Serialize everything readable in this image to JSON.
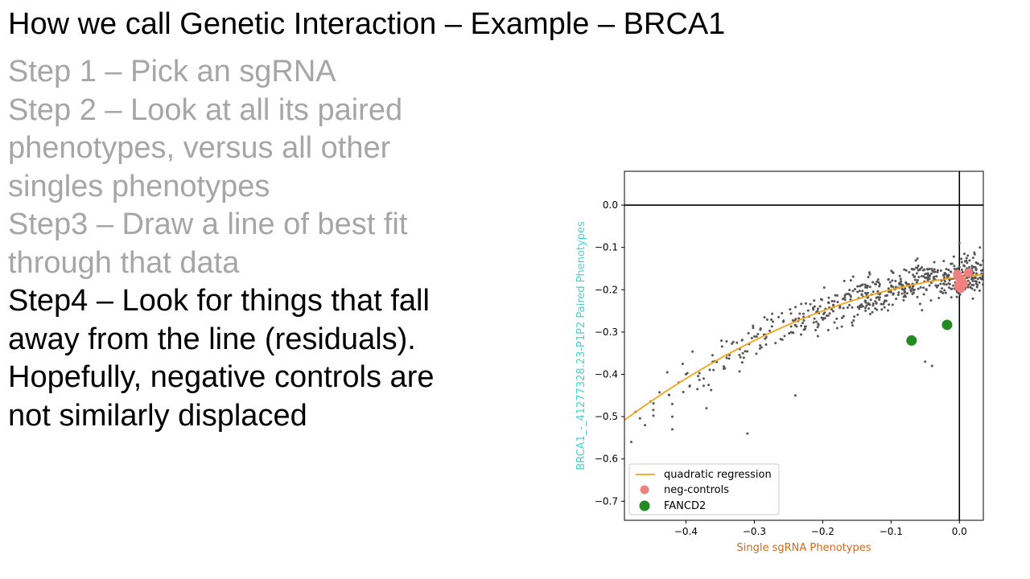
{
  "slide": {
    "title": "How we call Genetic Interaction – Example – BRCA1",
    "steps": [
      {
        "text": "Step 1 – Pick an sgRNA",
        "style": "gray"
      },
      {
        "text": "Step 2 – Look at all its paired",
        "style": "gray"
      },
      {
        "text": "phenotypes, versus all other",
        "style": "gray"
      },
      {
        "text": "singles phenotypes",
        "style": "gray"
      },
      {
        "text": "Step3 – Draw a line of best fit",
        "style": "gray"
      },
      {
        "text": "through that data",
        "style": "gray"
      },
      {
        "text": "Step4 – Look for things that fall",
        "style": "black"
      },
      {
        "text": "away from the line (residuals).",
        "style": "black"
      },
      {
        "text": "Hopefully, negative controls are",
        "style": "black"
      },
      {
        "text": "not similarly displaced",
        "style": "black"
      }
    ]
  },
  "colors": {
    "scatter": "#555555",
    "regression": "#f5a31a",
    "neg_controls": "#f08080",
    "fancd2": "#228b22",
    "xlabel": "#d2691e",
    "ylabel": "#48d1cc"
  },
  "chart_data": {
    "type": "scatter",
    "xlabel": "Single sgRNA Phenotypes",
    "ylabel": "BRCA1_-_41277328.23-P1P2 Paired Phenotypes",
    "xlim": [
      -0.49,
      0.035
    ],
    "ylim": [
      -0.745,
      0.08
    ],
    "xticks": [
      -0.4,
      -0.3,
      -0.2,
      -0.1,
      0.0
    ],
    "xtick_labels": [
      "−0.4",
      "−0.3",
      "−0.2",
      "−0.1",
      "0.0"
    ],
    "yticks": [
      0.0,
      -0.1,
      -0.2,
      -0.3,
      -0.4,
      -0.5,
      -0.6,
      -0.7
    ],
    "ytick_labels": [
      "0.0",
      "−0.1",
      "−0.2",
      "−0.3",
      "−0.4",
      "−0.5",
      "−0.6",
      "−0.7"
    ],
    "reference_lines": {
      "x": 0.0,
      "y": 0.0
    },
    "grid": false,
    "legend_position": "lower-left",
    "legend": [
      {
        "label": "quadratic regression",
        "kind": "line"
      },
      {
        "label": "neg-controls",
        "kind": "marker"
      },
      {
        "label": "FANCD2",
        "kind": "marker"
      }
    ],
    "regression": {
      "name": "quadratic regression",
      "a": -1.0,
      "b": 0.2,
      "c": -0.17,
      "x_range": [
        -0.49,
        0.035
      ]
    },
    "series": [
      {
        "name": "neg-controls",
        "points": [
          [
            -0.003,
            -0.163
          ],
          [
            0.0,
            -0.172
          ],
          [
            0.004,
            -0.181
          ],
          [
            -0.002,
            -0.191
          ],
          [
            0.002,
            -0.197
          ],
          [
            0.006,
            -0.186
          ],
          [
            0.013,
            -0.16
          ]
        ]
      },
      {
        "name": "FANCD2",
        "points": [
          [
            -0.07,
            -0.32
          ],
          [
            -0.018,
            -0.283
          ]
        ]
      }
    ],
    "scatter_cloud": {
      "approx_count": 600,
      "x_range": [
        -0.48,
        0.035
      ],
      "note_trend": "follows quadratic regression with spread about ±0.05"
    },
    "notable_points": [
      [
        -0.48,
        -0.56
      ],
      [
        -0.46,
        -0.52
      ],
      [
        -0.42,
        -0.5
      ],
      [
        -0.42,
        -0.53
      ],
      [
        -0.31,
        -0.54
      ],
      [
        -0.24,
        -0.45
      ],
      [
        -0.37,
        -0.48
      ],
      [
        -0.42,
        -0.47
      ],
      [
        -0.05,
        -0.37
      ],
      [
        -0.04,
        -0.38
      ],
      [
        0.0,
        -0.09
      ],
      [
        0.03,
        -0.1
      ]
    ]
  }
}
